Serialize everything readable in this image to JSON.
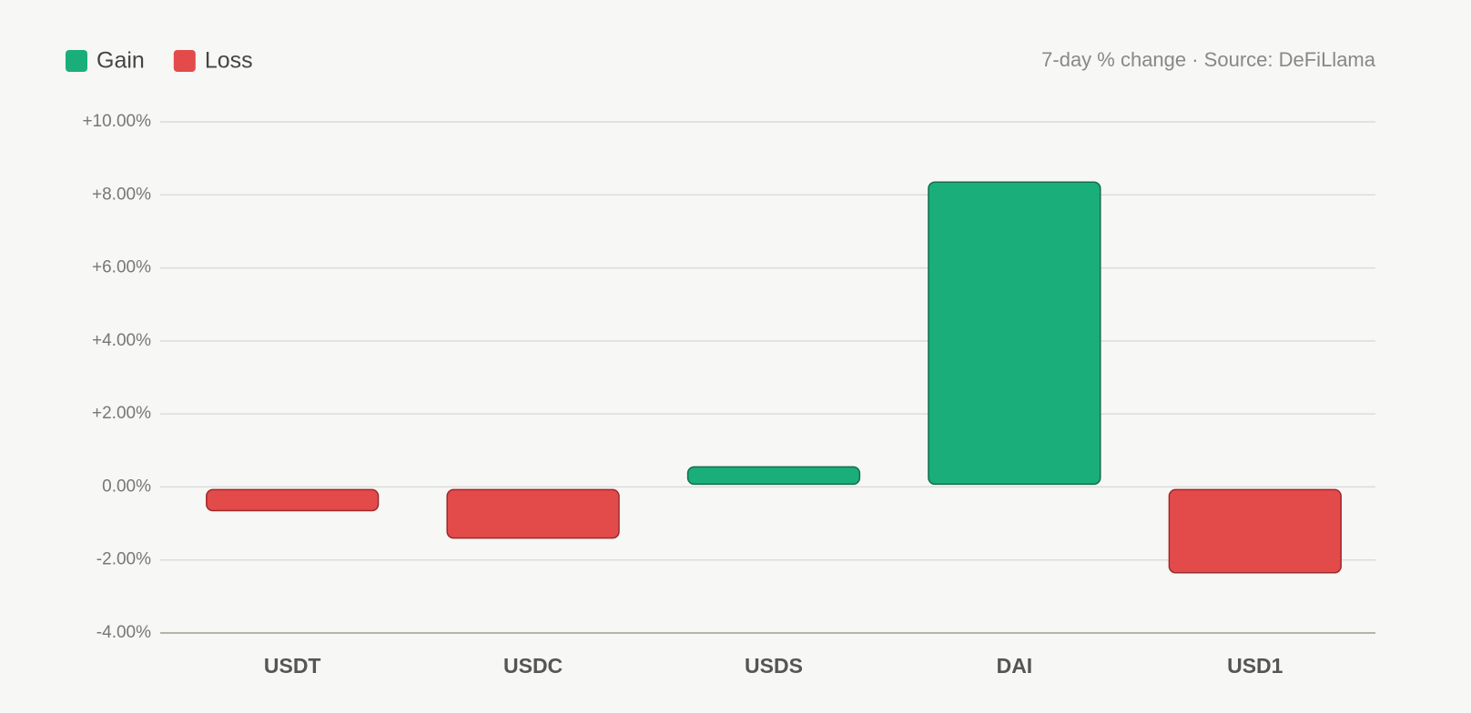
{
  "chart_data": {
    "type": "bar",
    "annotation": "7-day % change · Source: DeFiLlama",
    "legend": [
      {
        "name": "Gain",
        "color": "#1aaf7a"
      },
      {
        "name": "Loss",
        "color": "#e34b4b"
      }
    ],
    "categories": [
      "USDT",
      "USDC",
      "USDS",
      "DAI",
      "USD1"
    ],
    "values": [
      -0.65,
      -1.4,
      0.55,
      8.35,
      -2.35
    ],
    "ylim": [
      -4,
      10
    ],
    "yticks": [
      {
        "value": 10,
        "label": "+10.00%"
      },
      {
        "value": 8,
        "label": "+8.00%"
      },
      {
        "value": 6,
        "label": "+6.00%"
      },
      {
        "value": 4,
        "label": "+4.00%"
      },
      {
        "value": 2,
        "label": "+2.00%"
      },
      {
        "value": 0,
        "label": "0.00%"
      },
      {
        "value": -2,
        "label": "-2.00%"
      },
      {
        "value": -4,
        "label": "-4.00%"
      }
    ],
    "grid": true
  }
}
